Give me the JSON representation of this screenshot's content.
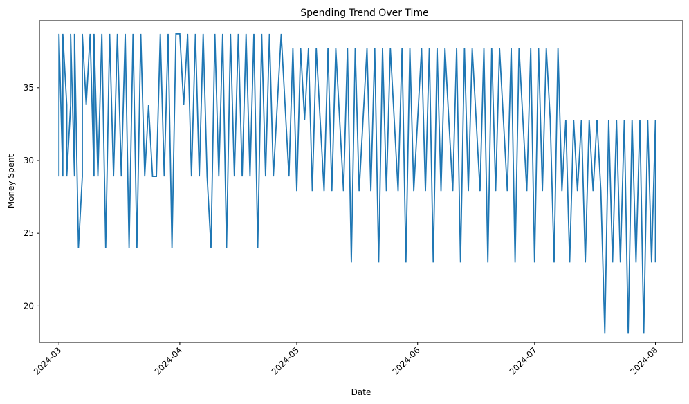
{
  "chart_data": {
    "type": "line",
    "title": "Spending Trend Over Time",
    "xlabel": "Date",
    "ylabel": "Money Spent",
    "xlim": [
      "2024-02-25",
      "2024-08-08"
    ],
    "ylim": [
      17.5,
      39.6
    ],
    "x_ticks": [
      "2024-03",
      "2024-04",
      "2024-05",
      "2024-06",
      "2024-07",
      "2024-08"
    ],
    "y_ticks": [
      20,
      25,
      30,
      35
    ],
    "grid": false,
    "legend": "none",
    "colors": {
      "line": "#1f77b4",
      "axis": "#000000"
    },
    "series": [
      {
        "points": [
          [
            "2024-03-01",
            28.9
          ],
          [
            "2024-03-01",
            38.7
          ],
          [
            "2024-03-02",
            28.9
          ],
          [
            "2024-03-02",
            38.7
          ],
          [
            "2024-03-03",
            33.8
          ],
          [
            "2024-03-03",
            28.9
          ],
          [
            "2024-03-04",
            33.8
          ],
          [
            "2024-03-04",
            38.7
          ],
          [
            "2024-03-05",
            28.9
          ],
          [
            "2024-03-05",
            38.7
          ],
          [
            "2024-03-06",
            24.0
          ],
          [
            "2024-03-07",
            28.9
          ],
          [
            "2024-03-07",
            38.7
          ],
          [
            "2024-03-08",
            33.8
          ],
          [
            "2024-03-09",
            38.7
          ],
          [
            "2024-03-10",
            28.9
          ],
          [
            "2024-03-10",
            38.7
          ],
          [
            "2024-03-11",
            28.9
          ],
          [
            "2024-03-12",
            38.7
          ],
          [
            "2024-03-13",
            24.0
          ],
          [
            "2024-03-14",
            38.7
          ],
          [
            "2024-03-15",
            28.9
          ],
          [
            "2024-03-16",
            38.7
          ],
          [
            "2024-03-17",
            28.9
          ],
          [
            "2024-03-18",
            38.7
          ],
          [
            "2024-03-19",
            24.0
          ],
          [
            "2024-03-20",
            38.7
          ],
          [
            "2024-03-21",
            24.0
          ],
          [
            "2024-03-22",
            38.7
          ],
          [
            "2024-03-23",
            28.9
          ],
          [
            "2024-03-24",
            33.8
          ],
          [
            "2024-03-25",
            28.9
          ],
          [
            "2024-03-26",
            28.9
          ],
          [
            "2024-03-27",
            38.7
          ],
          [
            "2024-03-28",
            28.9
          ],
          [
            "2024-03-29",
            38.7
          ],
          [
            "2024-03-30",
            24.0
          ],
          [
            "2024-03-31",
            38.7
          ],
          [
            "2024-04-01",
            38.7
          ],
          [
            "2024-04-02",
            33.8
          ],
          [
            "2024-04-03",
            38.7
          ],
          [
            "2024-04-04",
            28.9
          ],
          [
            "2024-04-05",
            38.7
          ],
          [
            "2024-04-06",
            28.9
          ],
          [
            "2024-04-07",
            38.7
          ],
          [
            "2024-04-08",
            28.9
          ],
          [
            "2024-04-09",
            24.0
          ],
          [
            "2024-04-10",
            38.7
          ],
          [
            "2024-04-11",
            28.9
          ],
          [
            "2024-04-12",
            38.7
          ],
          [
            "2024-04-13",
            24.0
          ],
          [
            "2024-04-14",
            38.7
          ],
          [
            "2024-04-15",
            28.9
          ],
          [
            "2024-04-16",
            38.7
          ],
          [
            "2024-04-17",
            28.9
          ],
          [
            "2024-04-18",
            38.7
          ],
          [
            "2024-04-19",
            28.9
          ],
          [
            "2024-04-20",
            38.7
          ],
          [
            "2024-04-21",
            24.0
          ],
          [
            "2024-04-22",
            38.7
          ],
          [
            "2024-04-23",
            28.9
          ],
          [
            "2024-04-24",
            38.7
          ],
          [
            "2024-04-25",
            28.9
          ],
          [
            "2024-04-26",
            33.8
          ],
          [
            "2024-04-27",
            38.7
          ],
          [
            "2024-04-28",
            33.8
          ],
          [
            "2024-04-29",
            28.9
          ],
          [
            "2024-04-30",
            37.7
          ],
          [
            "2024-05-01",
            27.9
          ],
          [
            "2024-05-02",
            37.7
          ],
          [
            "2024-05-03",
            32.8
          ],
          [
            "2024-05-04",
            37.7
          ],
          [
            "2024-05-05",
            27.9
          ],
          [
            "2024-05-06",
            37.7
          ],
          [
            "2024-05-07",
            32.8
          ],
          [
            "2024-05-08",
            27.9
          ],
          [
            "2024-05-09",
            37.7
          ],
          [
            "2024-05-10",
            27.9
          ],
          [
            "2024-05-11",
            37.7
          ],
          [
            "2024-05-12",
            32.8
          ],
          [
            "2024-05-13",
            27.9
          ],
          [
            "2024-05-14",
            37.7
          ],
          [
            "2024-05-15",
            23.0
          ],
          [
            "2024-05-16",
            37.7
          ],
          [
            "2024-05-17",
            27.9
          ],
          [
            "2024-05-18",
            32.8
          ],
          [
            "2024-05-19",
            37.7
          ],
          [
            "2024-05-20",
            27.9
          ],
          [
            "2024-05-21",
            37.7
          ],
          [
            "2024-05-22",
            23.0
          ],
          [
            "2024-05-23",
            37.7
          ],
          [
            "2024-05-24",
            27.9
          ],
          [
            "2024-05-25",
            37.7
          ],
          [
            "2024-05-26",
            32.8
          ],
          [
            "2024-05-27",
            27.9
          ],
          [
            "2024-05-28",
            37.7
          ],
          [
            "2024-05-29",
            23.0
          ],
          [
            "2024-05-30",
            37.7
          ],
          [
            "2024-05-31",
            27.9
          ],
          [
            "2024-06-01",
            32.8
          ],
          [
            "2024-06-02",
            37.7
          ],
          [
            "2024-06-03",
            27.9
          ],
          [
            "2024-06-04",
            37.7
          ],
          [
            "2024-06-05",
            23.0
          ],
          [
            "2024-06-06",
            37.7
          ],
          [
            "2024-06-07",
            27.9
          ],
          [
            "2024-06-08",
            37.7
          ],
          [
            "2024-06-09",
            32.8
          ],
          [
            "2024-06-10",
            27.9
          ],
          [
            "2024-06-11",
            37.7
          ],
          [
            "2024-06-12",
            23.0
          ],
          [
            "2024-06-13",
            37.7
          ],
          [
            "2024-06-14",
            27.9
          ],
          [
            "2024-06-15",
            37.7
          ],
          [
            "2024-06-16",
            32.8
          ],
          [
            "2024-06-17",
            27.9
          ],
          [
            "2024-06-18",
            37.7
          ],
          [
            "2024-06-19",
            23.0
          ],
          [
            "2024-06-20",
            37.7
          ],
          [
            "2024-06-21",
            27.9
          ],
          [
            "2024-06-22",
            37.7
          ],
          [
            "2024-06-23",
            32.8
          ],
          [
            "2024-06-24",
            27.9
          ],
          [
            "2024-06-25",
            37.7
          ],
          [
            "2024-06-26",
            23.0
          ],
          [
            "2024-06-27",
            37.7
          ],
          [
            "2024-06-28",
            32.8
          ],
          [
            "2024-06-29",
            27.9
          ],
          [
            "2024-06-30",
            37.7
          ],
          [
            "2024-07-01",
            23.0
          ],
          [
            "2024-07-02",
            37.7
          ],
          [
            "2024-07-03",
            27.9
          ],
          [
            "2024-07-04",
            37.7
          ],
          [
            "2024-07-05",
            32.8
          ],
          [
            "2024-07-06",
            23.0
          ],
          [
            "2024-07-07",
            37.7
          ],
          [
            "2024-07-08",
            27.9
          ],
          [
            "2024-07-09",
            32.8
          ],
          [
            "2024-07-10",
            23.0
          ],
          [
            "2024-07-11",
            32.8
          ],
          [
            "2024-07-12",
            27.9
          ],
          [
            "2024-07-13",
            32.8
          ],
          [
            "2024-07-14",
            23.0
          ],
          [
            "2024-07-15",
            32.8
          ],
          [
            "2024-07-16",
            27.9
          ],
          [
            "2024-07-17",
            32.8
          ],
          [
            "2024-07-18",
            27.9
          ],
          [
            "2024-07-19",
            18.1
          ],
          [
            "2024-07-20",
            32.8
          ],
          [
            "2024-07-21",
            23.0
          ],
          [
            "2024-07-22",
            32.8
          ],
          [
            "2024-07-23",
            23.0
          ],
          [
            "2024-07-24",
            32.8
          ],
          [
            "2024-07-25",
            18.1
          ],
          [
            "2024-07-26",
            32.8
          ],
          [
            "2024-07-27",
            23.0
          ],
          [
            "2024-07-28",
            32.8
          ],
          [
            "2024-07-29",
            18.1
          ],
          [
            "2024-07-30",
            32.8
          ],
          [
            "2024-07-31",
            23.0
          ],
          [
            "2024-08-01",
            32.8
          ],
          [
            "2024-08-01",
            23.0
          ]
        ]
      }
    ]
  }
}
